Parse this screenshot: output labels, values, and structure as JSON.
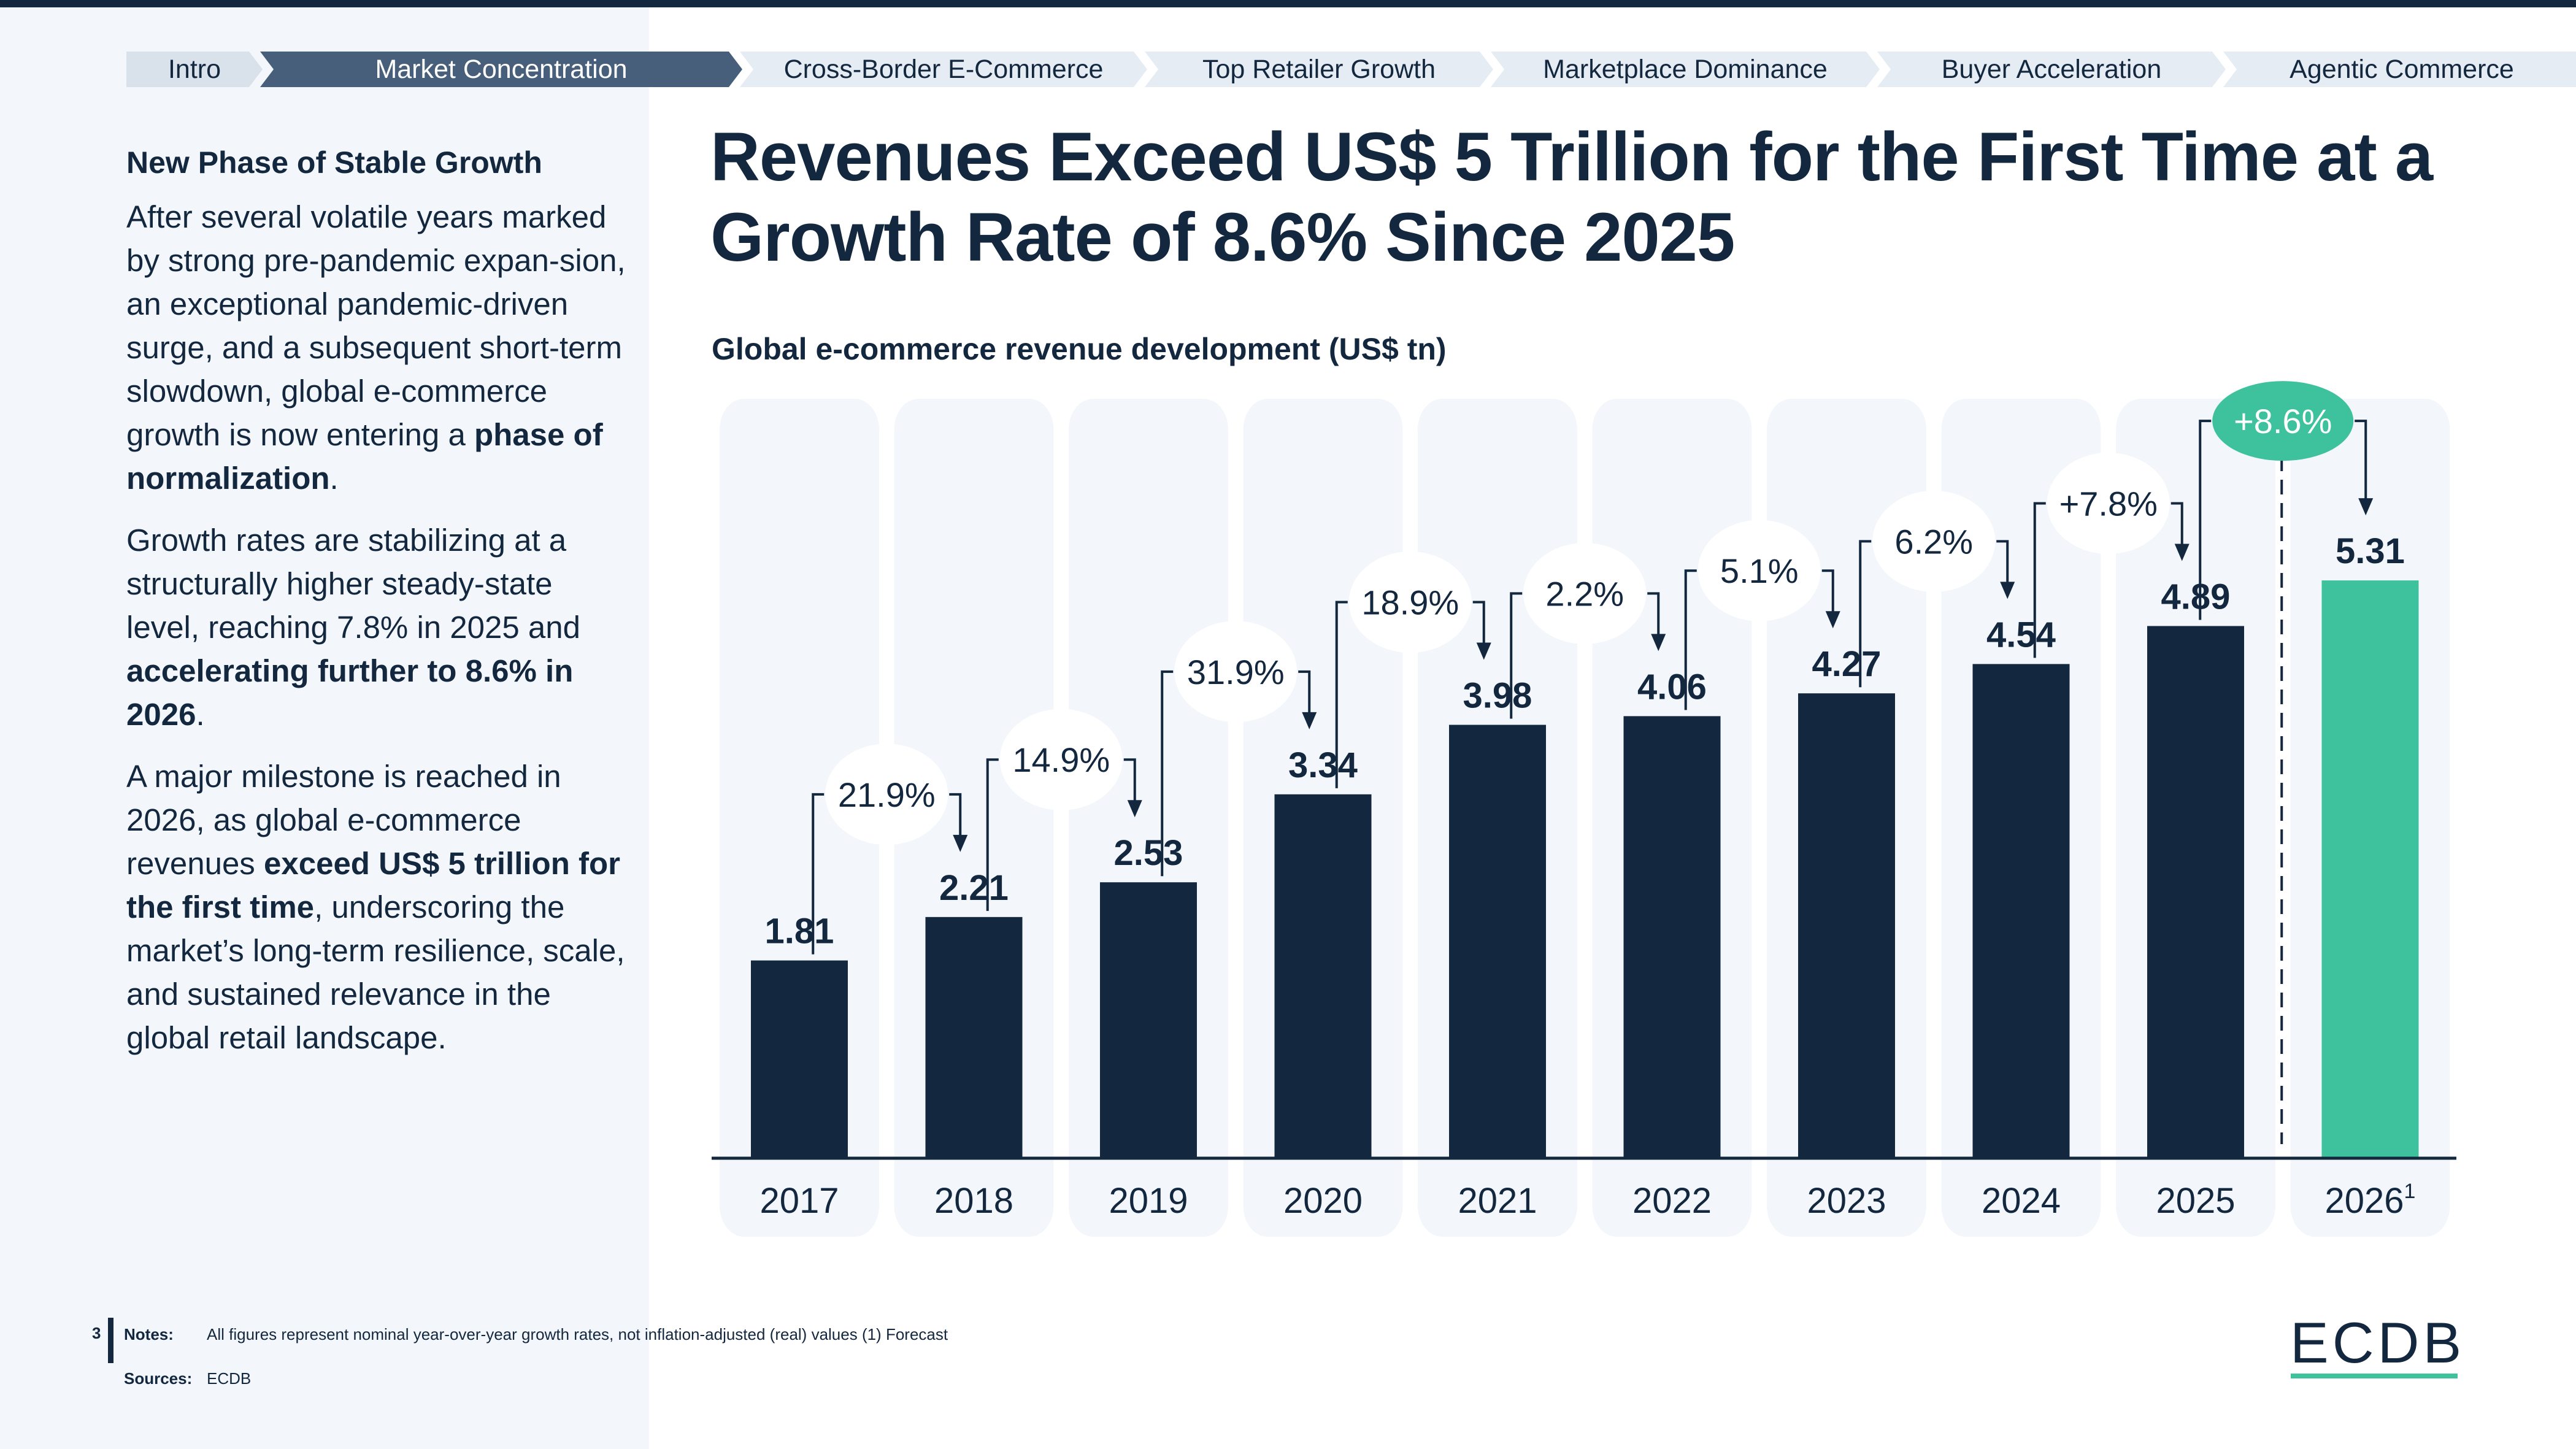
{
  "breadcrumb": {
    "items": [
      {
        "label": "Intro",
        "active": false
      },
      {
        "label": "Market Concentration",
        "active": true
      },
      {
        "label": "Cross-Border E-Commerce",
        "active": false
      },
      {
        "label": "Top Retailer Growth",
        "active": false
      },
      {
        "label": "Marketplace Dominance",
        "active": false
      },
      {
        "label": "Buyer Acceleration",
        "active": false
      },
      {
        "label": "Agentic Commerce",
        "active": false
      }
    ]
  },
  "sidebar": {
    "heading": "New Phase of Stable Growth",
    "p1_a": "After several volatile years marked by strong pre-pandemic expan-sion, an exceptional pandemic-driven surge, and a subsequent short-term slowdown, global e-commerce growth is now entering a ",
    "p1_b": "phase of normalization",
    "p1_c": ".",
    "p2_a": "Growth rates are stabilizing at a structurally higher steady-state level, reaching 7.8% in 2025 and ",
    "p2_b": "accelerating further to 8.6% in 2026",
    "p2_c": ".",
    "p3_a": "A major milestone is reached in 2026, as global e-commerce revenues ",
    "p3_b": "exceed US$ 5 trillion for the first time",
    "p3_c": ", underscoring the market’s long-term resilience, scale, and sustained relevance in the global retail landscape."
  },
  "header": {
    "title": "Revenues Exceed US$ 5 Trillion for the First Time at a Growth Rate of 8.6% Since 2025"
  },
  "colors": {
    "navy": "#13273F",
    "accent": "#3EC29E",
    "panel": "#F3F7FB",
    "crumb_active": "#475F7B"
  },
  "chart_data": {
    "type": "bar",
    "title": "Global e-commerce revenue development (US$ tn)",
    "xlabel": "",
    "ylabel": "US$ tn",
    "categories": [
      "2017",
      "2018",
      "2019",
      "2020",
      "2021",
      "2022",
      "2023",
      "2024",
      "2025",
      "2026"
    ],
    "category_superscripts": [
      "",
      "",
      "",
      "",
      "",
      "",
      "",
      "",
      "",
      "1"
    ],
    "values": [
      1.81,
      2.21,
      2.53,
      3.34,
      3.98,
      4.06,
      4.27,
      4.54,
      4.89,
      5.31
    ],
    "value_labels": [
      "1.81",
      "2.21",
      "2.53",
      "3.34",
      "3.98",
      "4.06",
      "4.27",
      "4.54",
      "4.89",
      "5.31"
    ],
    "growth_labels": [
      "21.9%",
      "14.9%",
      "31.9%",
      "18.9%",
      "2.2%",
      "5.1%",
      "6.2%",
      "+7.8%",
      "+8.6%"
    ],
    "highlight_index": 9,
    "forecast_divider_after": "2025",
    "ylim": [
      0,
      5.31
    ],
    "grid": false,
    "legend": "none"
  },
  "footer": {
    "page_number": "3",
    "notes_label": "Notes:",
    "notes_text": "All figures represent nominal year-over-year growth rates, not inflation-adjusted (real) values (1) Forecast",
    "sources_label": "Sources:",
    "sources_text": "ECDB",
    "logo": "ECDB"
  }
}
